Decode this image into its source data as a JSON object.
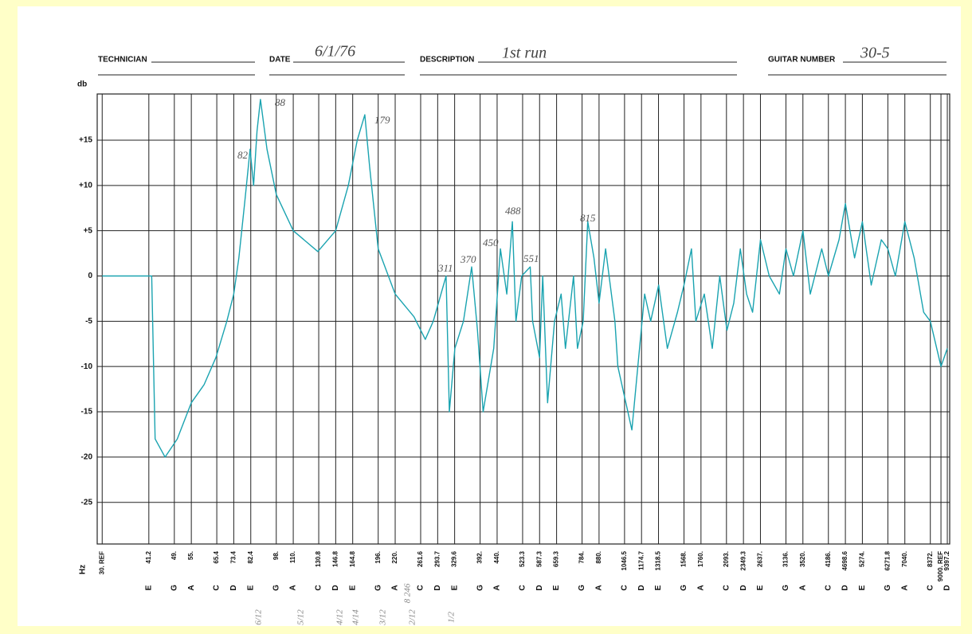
{
  "form": {
    "technician_label": "TECHNICIAN",
    "date_label": "DATE",
    "date": "6/1/76",
    "description_label": "DESCRIPTION",
    "description": "1st run",
    "guitar_number_label": "GUITAR NUMBER",
    "guitar_number": "30-5"
  },
  "chart_data": {
    "type": "line",
    "y_label": "db",
    "x_label": "Hz",
    "log_x": true,
    "grid": true,
    "color": "#1aa3b0",
    "xlim": [
      29,
      9550
    ],
    "ylim": [
      -29.6,
      20.1
    ],
    "yticks": [
      {
        "value": 15,
        "label": "+15"
      },
      {
        "value": 10,
        "label": "+10"
      },
      {
        "value": 5,
        "label": "+5"
      },
      0,
      -5,
      -10,
      -15,
      -20,
      -25
    ],
    "xticks": [
      {
        "value": 30,
        "label": "30. REF"
      },
      41.2,
      {
        "value": 49,
        "label": "49."
      },
      {
        "value": 55,
        "label": "55."
      },
      65.4,
      73.4,
      82.4,
      {
        "value": 98,
        "label": "98."
      },
      {
        "value": 110,
        "label": "110."
      },
      130.8,
      146.8,
      164.8,
      {
        "value": 196,
        "label": "196."
      },
      {
        "value": 220,
        "label": "220."
      },
      261.6,
      293.7,
      329.6,
      {
        "value": 392,
        "label": "392."
      },
      {
        "value": 440,
        "label": "440."
      },
      523.3,
      587.3,
      659.3,
      {
        "value": 784,
        "label": "784."
      },
      {
        "value": 880,
        "label": "880."
      },
      1046.5,
      1174.7,
      1318.5,
      {
        "value": 1568,
        "label": "1568."
      },
      {
        "value": 1760,
        "label": "1760."
      },
      {
        "value": 2093,
        "label": "2093."
      },
      2349.3,
      {
        "value": 2637,
        "label": "2637."
      },
      {
        "value": 3136,
        "label": "3136."
      },
      {
        "value": 3520,
        "label": "3520."
      },
      {
        "value": 4186,
        "label": "4186."
      },
      4698.6,
      {
        "value": 5274,
        "label": "5274."
      },
      6271.8,
      {
        "value": 7040,
        "label": "7040."
      },
      {
        "value": 8372,
        "label": "8372."
      },
      {
        "value": 9000,
        "label": "9000. REF"
      },
      9397.2
    ],
    "x_notes": [
      null,
      "E",
      "G",
      "A",
      "C",
      "D",
      "E",
      "G",
      "A",
      "C",
      "D",
      "E",
      "G",
      "A",
      "C",
      "D",
      "E",
      "G",
      "A",
      "C",
      "D",
      "E",
      "G",
      "A",
      "C",
      "D",
      "E",
      "G",
      "A",
      "C",
      "D",
      "E",
      "G",
      "A",
      "C",
      "D",
      "E",
      "G",
      "A",
      "C",
      null,
      "D"
    ],
    "x": [
      30,
      36,
      42,
      43,
      46,
      50,
      55,
      60,
      65,
      70,
      73.4,
      76,
      79,
      81,
      82,
      84,
      86,
      88,
      92,
      98,
      110,
      130,
      146.8,
      160,
      170,
      179,
      185,
      196,
      220,
      250,
      270,
      285,
      311,
      318,
      330,
      350,
      370,
      385,
      400,
      430,
      450,
      470,
      488,
      500,
      520,
      551,
      560,
      587,
      600,
      620,
      650,
      680,
      700,
      740,
      760,
      790,
      815,
      850,
      880,
      920,
      980,
      1000,
      1100,
      1200,
      1250,
      1320,
      1400,
      1500,
      1568,
      1650,
      1700,
      1800,
      1900,
      2000,
      2100,
      2200,
      2300,
      2400,
      2500,
      2637,
      2800,
      3000,
      3136,
      3300,
      3520,
      3700,
      4000,
      4186,
      4500,
      4700,
      5000,
      5274,
      5600,
      6000,
      6271.8,
      6600,
      7040,
      7500,
      8000,
      8372,
      9000,
      9397
    ],
    "values": [
      0,
      0,
      0,
      -18,
      -20,
      -18,
      -14,
      -12,
      -9,
      -5,
      -2,
      2,
      8,
      12,
      14,
      10,
      16,
      19.5,
      14,
      9,
      5,
      2.7,
      5,
      10,
      15,
      17.8,
      12,
      3,
      -2,
      -4.5,
      -7,
      -5,
      0,
      -15,
      -8,
      -5,
      1,
      -6,
      -15,
      -8,
      3,
      -2,
      6,
      -5,
      0,
      1,
      -5,
      -9,
      0,
      -14,
      -5,
      -2,
      -8,
      0,
      -8,
      -5,
      6,
      2,
      -3,
      3,
      -5,
      -10,
      -17,
      -2,
      -5,
      -1,
      -8,
      -4,
      -1,
      3,
      -5,
      -2,
      -8,
      0,
      -6,
      -3,
      3,
      -2,
      -4,
      4,
      0,
      -2,
      3,
      0,
      5,
      -2,
      3,
      0,
      4,
      8,
      2,
      6,
      -1,
      4,
      3,
      0,
      6,
      2,
      -4,
      -5,
      -10,
      -8
    ],
    "annotations": [
      "82",
      "88",
      "179",
      "311",
      "370",
      "450",
      "488",
      "551",
      "815"
    ],
    "bottom_notes": [
      "6/12",
      "5/12",
      "4/12",
      "4/14",
      "3/12",
      "8 246",
      "2/12",
      "1/2"
    ]
  }
}
